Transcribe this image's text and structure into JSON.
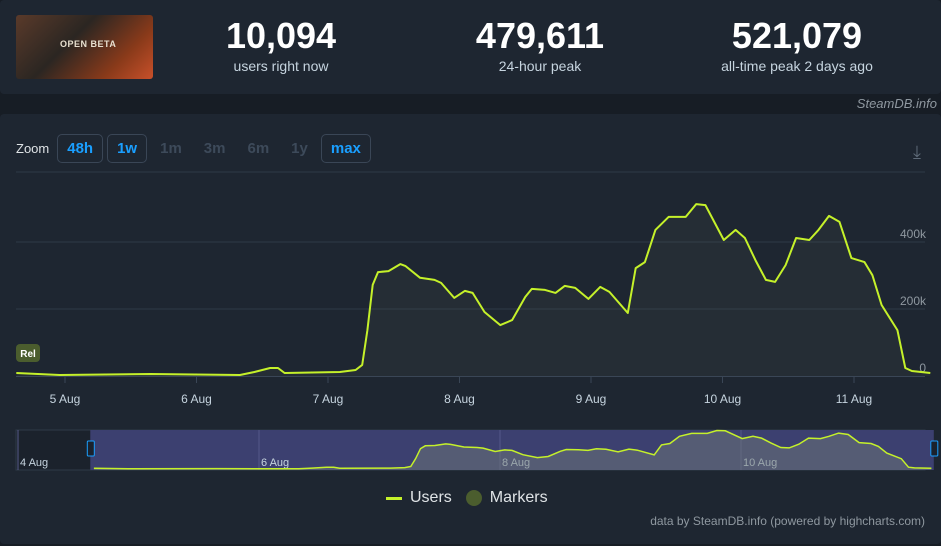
{
  "header": {
    "game_thumbnail_text": "OPEN BETA",
    "stats": [
      {
        "value": "10,094",
        "label": "users right now"
      },
      {
        "value": "479,611",
        "label": "24-hour peak"
      },
      {
        "value": "521,079",
        "label": "all-time peak 2 days ago"
      }
    ],
    "credit": "SteamDB.info"
  },
  "zoom": {
    "label": "Zoom",
    "buttons": [
      {
        "label": "48h",
        "active": true
      },
      {
        "label": "1w",
        "active": true
      },
      {
        "label": "1m",
        "active": false
      },
      {
        "label": "3m",
        "active": false
      },
      {
        "label": "6m",
        "active": false
      },
      {
        "label": "1y",
        "active": false
      },
      {
        "label": "max",
        "active": true
      }
    ]
  },
  "marker_label": "Rel",
  "legend": {
    "users": "Users",
    "markers": "Markers"
  },
  "footer": "data by SteamDB.info (powered by highcharts.com)",
  "colors": {
    "line": "#c5f12a",
    "marker": "#4b5d2e",
    "navigator": "#3c4070"
  },
  "chart_data": {
    "type": "line",
    "series": [
      {
        "name": "Users",
        "x_unit": "days since 4 Aug 00:00",
        "points": [
          [
            4.63,
            9
          ],
          [
            4.96,
            3
          ],
          [
            5.65,
            6
          ],
          [
            6.33,
            3
          ],
          [
            6.44,
            12
          ],
          [
            6.56,
            24
          ],
          [
            6.62,
            24
          ],
          [
            6.67,
            9
          ],
          [
            7.09,
            12
          ],
          [
            7.21,
            18
          ],
          [
            7.26,
            33
          ],
          [
            7.3,
            137
          ],
          [
            7.34,
            272
          ],
          [
            7.38,
            310
          ],
          [
            7.46,
            313
          ],
          [
            7.55,
            334
          ],
          [
            7.59,
            328
          ],
          [
            7.7,
            293
          ],
          [
            7.81,
            287
          ],
          [
            7.86,
            278
          ],
          [
            7.96,
            233
          ],
          [
            8.04,
            254
          ],
          [
            8.1,
            248
          ],
          [
            8.19,
            191
          ],
          [
            8.31,
            152
          ],
          [
            8.4,
            167
          ],
          [
            8.5,
            236
          ],
          [
            8.55,
            260
          ],
          [
            8.65,
            257
          ],
          [
            8.73,
            248
          ],
          [
            8.8,
            269
          ],
          [
            8.88,
            263
          ],
          [
            8.98,
            230
          ],
          [
            9.07,
            266
          ],
          [
            9.14,
            251
          ],
          [
            9.28,
            188
          ],
          [
            9.34,
            322
          ],
          [
            9.41,
            340
          ],
          [
            9.49,
            436
          ],
          [
            9.59,
            475
          ],
          [
            9.72,
            475
          ],
          [
            9.8,
            513
          ],
          [
            9.87,
            510
          ],
          [
            10.01,
            406
          ],
          [
            10.1,
            436
          ],
          [
            10.17,
            412
          ],
          [
            10.25,
            346
          ],
          [
            10.33,
            287
          ],
          [
            10.4,
            281
          ],
          [
            10.48,
            331
          ],
          [
            10.56,
            412
          ],
          [
            10.66,
            406
          ],
          [
            10.73,
            436
          ],
          [
            10.81,
            478
          ],
          [
            10.89,
            460
          ],
          [
            10.98,
            352
          ],
          [
            11.08,
            340
          ],
          [
            11.14,
            301
          ],
          [
            11.21,
            212
          ],
          [
            11.33,
            137
          ],
          [
            11.39,
            24
          ],
          [
            11.44,
            15
          ],
          [
            11.58,
            9
          ]
        ]
      }
    ],
    "x_ticks": [
      {
        "day": 5,
        "label": "5 Aug"
      },
      {
        "day": 6,
        "label": "6 Aug"
      },
      {
        "day": 7,
        "label": "7 Aug"
      },
      {
        "day": 8,
        "label": "8 Aug"
      },
      {
        "day": 9,
        "label": "9 Aug"
      },
      {
        "day": 10,
        "label": "10 Aug"
      },
      {
        "day": 11,
        "label": "11 Aug"
      }
    ],
    "y_ticks": [
      {
        "value": 0,
        "label": "0"
      },
      {
        "value": 200,
        "label": "200k"
      },
      {
        "value": 400,
        "label": "400k"
      }
    ],
    "navigator_ticks": [
      {
        "day": 4,
        "label": "4 Aug"
      },
      {
        "day": 6,
        "label": "6 Aug"
      },
      {
        "day": 8,
        "label": "8 Aug"
      },
      {
        "day": 10,
        "label": "10 Aug"
      }
    ],
    "navigator_selection": [
      4.6,
      11.6
    ],
    "y_unit": "thousands"
  }
}
